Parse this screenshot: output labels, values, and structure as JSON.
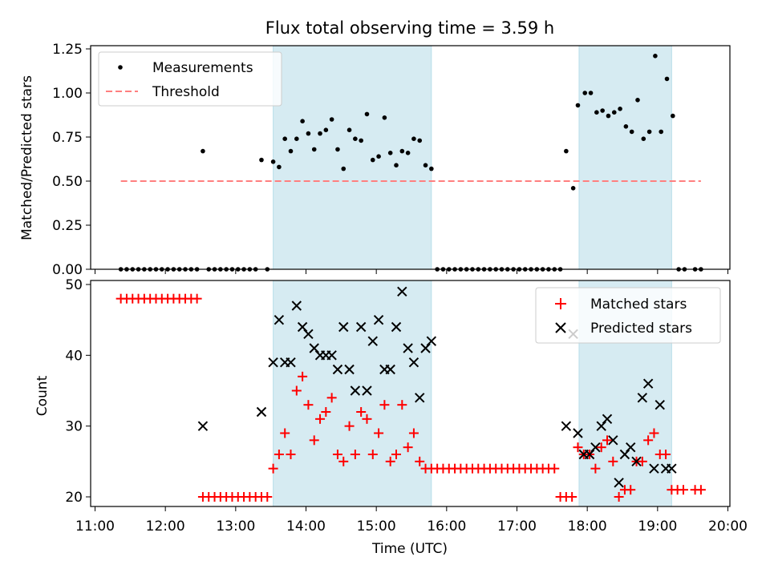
{
  "title": "Flux total observing time = 3.59 h",
  "xlabel": "Time (UTC)",
  "chart_data": [
    {
      "type": "scatter",
      "panel": "top",
      "ylabel": "Matched/Predicted stars",
      "xlim": [
        "11:00",
        "20:00"
      ],
      "ylim": [
        0,
        1.25
      ],
      "yticks": [
        "0.00",
        "0.25",
        "0.50",
        "0.75",
        "1.00",
        "1.25"
      ],
      "legend": {
        "placement": "top-left",
        "entries": [
          "Measurements",
          "Threshold"
        ]
      },
      "shaded_intervals": [
        [
          "13:32",
          "15:47"
        ],
        [
          "17:53",
          "19:12"
        ]
      ],
      "threshold": {
        "name": "Threshold",
        "y": 0.5,
        "x_range": [
          "11:22",
          "19:37"
        ],
        "color": "#ff7f7f"
      },
      "series": [
        {
          "name": "Measurements",
          "color": "#000000",
          "points": [
            [
              "11:22",
              0
            ],
            [
              "11:27",
              0
            ],
            [
              "11:32",
              0
            ],
            [
              "11:37",
              0
            ],
            [
              "11:42",
              0
            ],
            [
              "11:47",
              0
            ],
            [
              "11:52",
              0
            ],
            [
              "11:57",
              0
            ],
            [
              "12:02",
              0
            ],
            [
              "12:07",
              0
            ],
            [
              "12:12",
              0
            ],
            [
              "12:17",
              0
            ],
            [
              "12:22",
              0
            ],
            [
              "12:27",
              0
            ],
            [
              "12:32",
              0.67
            ],
            [
              "12:37",
              0
            ],
            [
              "12:42",
              0
            ],
            [
              "12:47",
              0
            ],
            [
              "12:52",
              0
            ],
            [
              "12:57",
              0
            ],
            [
              "13:02",
              0
            ],
            [
              "13:07",
              0
            ],
            [
              "13:12",
              0
            ],
            [
              "13:17",
              0
            ],
            [
              "13:22",
              0.62
            ],
            [
              "13:27",
              0
            ],
            [
              "13:32",
              0.61
            ],
            [
              "13:37",
              0.58
            ],
            [
              "13:42",
              0.74
            ],
            [
              "13:47",
              0.67
            ],
            [
              "13:52",
              0.74
            ],
            [
              "13:57",
              0.84
            ],
            [
              "14:02",
              0.77
            ],
            [
              "14:07",
              0.68
            ],
            [
              "14:12",
              0.77
            ],
            [
              "14:17",
              0.79
            ],
            [
              "14:22",
              0.85
            ],
            [
              "14:27",
              0.68
            ],
            [
              "14:32",
              0.57
            ],
            [
              "14:37",
              0.79
            ],
            [
              "14:42",
              0.74
            ],
            [
              "14:47",
              0.73
            ],
            [
              "14:52",
              0.88
            ],
            [
              "14:57",
              0.62
            ],
            [
              "15:02",
              0.64
            ],
            [
              "15:07",
              0.86
            ],
            [
              "15:12",
              0.66
            ],
            [
              "15:17",
              0.59
            ],
            [
              "15:22",
              0.67
            ],
            [
              "15:27",
              0.66
            ],
            [
              "15:32",
              0.74
            ],
            [
              "15:37",
              0.73
            ],
            [
              "15:42",
              0.59
            ],
            [
              "15:47",
              0.57
            ],
            [
              "15:52",
              0
            ],
            [
              "15:57",
              0
            ],
            [
              "16:02",
              0
            ],
            [
              "16:07",
              0
            ],
            [
              "16:12",
              0
            ],
            [
              "16:17",
              0
            ],
            [
              "16:22",
              0
            ],
            [
              "16:27",
              0
            ],
            [
              "16:32",
              0
            ],
            [
              "16:37",
              0
            ],
            [
              "16:42",
              0
            ],
            [
              "16:47",
              0
            ],
            [
              "16:52",
              0
            ],
            [
              "16:57",
              0
            ],
            [
              "17:02",
              0
            ],
            [
              "17:07",
              0
            ],
            [
              "17:12",
              0
            ],
            [
              "17:17",
              0
            ],
            [
              "17:22",
              0
            ],
            [
              "17:27",
              0
            ],
            [
              "17:32",
              0
            ],
            [
              "17:37",
              0
            ],
            [
              "17:42",
              0.67
            ],
            [
              "17:48",
              0.46
            ],
            [
              "17:52",
              0.93
            ],
            [
              "17:58",
              1.0
            ],
            [
              "18:03",
              1.0
            ],
            [
              "18:08",
              0.89
            ],
            [
              "18:13",
              0.9
            ],
            [
              "18:18",
              0.87
            ],
            [
              "18:23",
              0.89
            ],
            [
              "18:28",
              0.91
            ],
            [
              "18:33",
              0.81
            ],
            [
              "18:38",
              0.78
            ],
            [
              "18:43",
              0.96
            ],
            [
              "18:48",
              0.74
            ],
            [
              "18:53",
              0.78
            ],
            [
              "18:58",
              1.21
            ],
            [
              "19:03",
              0.78
            ],
            [
              "19:08",
              1.08
            ],
            [
              "19:13",
              0.87
            ],
            [
              "19:18",
              0
            ],
            [
              "19:23",
              0
            ],
            [
              "19:32",
              0
            ],
            [
              "19:37",
              0
            ]
          ]
        }
      ]
    },
    {
      "type": "scatter",
      "panel": "bottom",
      "ylabel": "Count",
      "xlim": [
        "11:00",
        "20:00"
      ],
      "ylim": [
        18.5,
        50
      ],
      "yticks": [
        "20",
        "30",
        "40",
        "50"
      ],
      "xticks": [
        "11:00",
        "12:00",
        "13:00",
        "14:00",
        "15:00",
        "16:00",
        "17:00",
        "18:00",
        "19:00",
        "20:00"
      ],
      "legend": {
        "placement": "top-right",
        "entries": [
          "Matched stars",
          "Predicted stars"
        ]
      },
      "shaded_intervals": [
        [
          "13:32",
          "15:47"
        ],
        [
          "17:53",
          "19:12"
        ]
      ],
      "series": [
        {
          "name": "Matched stars",
          "marker": "plus",
          "color": "#ff0000",
          "points": [
            [
              "11:22",
              48
            ],
            [
              "11:27",
              48
            ],
            [
              "11:32",
              48
            ],
            [
              "11:37",
              48
            ],
            [
              "11:42",
              48
            ],
            [
              "11:47",
              48
            ],
            [
              "11:52",
              48
            ],
            [
              "11:57",
              48
            ],
            [
              "12:02",
              48
            ],
            [
              "12:07",
              48
            ],
            [
              "12:12",
              48
            ],
            [
              "12:17",
              48
            ],
            [
              "12:22",
              48
            ],
            [
              "12:27",
              48
            ],
            [
              "12:32",
              20
            ],
            [
              "12:37",
              20
            ],
            [
              "12:42",
              20
            ],
            [
              "12:47",
              20
            ],
            [
              "12:52",
              20
            ],
            [
              "12:57",
              20
            ],
            [
              "13:02",
              20
            ],
            [
              "13:07",
              20
            ],
            [
              "13:12",
              20
            ],
            [
              "13:17",
              20
            ],
            [
              "13:22",
              20
            ],
            [
              "13:27",
              20
            ],
            [
              "13:32",
              24
            ],
            [
              "13:37",
              26
            ],
            [
              "13:42",
              29
            ],
            [
              "13:47",
              26
            ],
            [
              "13:52",
              35
            ],
            [
              "13:57",
              37
            ],
            [
              "14:02",
              33
            ],
            [
              "14:07",
              28
            ],
            [
              "14:12",
              31
            ],
            [
              "14:17",
              32
            ],
            [
              "14:22",
              34
            ],
            [
              "14:27",
              26
            ],
            [
              "14:32",
              25
            ],
            [
              "14:37",
              30
            ],
            [
              "14:42",
              26
            ],
            [
              "14:47",
              32
            ],
            [
              "14:52",
              31
            ],
            [
              "14:57",
              26
            ],
            [
              "15:02",
              29
            ],
            [
              "15:07",
              33
            ],
            [
              "15:12",
              25
            ],
            [
              "15:17",
              26
            ],
            [
              "15:22",
              33
            ],
            [
              "15:27",
              27
            ],
            [
              "15:32",
              29
            ],
            [
              "15:37",
              25
            ],
            [
              "15:42",
              24
            ],
            [
              "15:47",
              24
            ],
            [
              "15:52",
              24
            ],
            [
              "15:57",
              24
            ],
            [
              "16:02",
              24
            ],
            [
              "16:07",
              24
            ],
            [
              "16:12",
              24
            ],
            [
              "16:17",
              24
            ],
            [
              "16:22",
              24
            ],
            [
              "16:27",
              24
            ],
            [
              "16:32",
              24
            ],
            [
              "16:37",
              24
            ],
            [
              "16:42",
              24
            ],
            [
              "16:47",
              24
            ],
            [
              "16:52",
              24
            ],
            [
              "16:57",
              24
            ],
            [
              "17:02",
              24
            ],
            [
              "17:07",
              24
            ],
            [
              "17:12",
              24
            ],
            [
              "17:17",
              24
            ],
            [
              "17:22",
              24
            ],
            [
              "17:27",
              24
            ],
            [
              "17:32",
              24
            ],
            [
              "17:37",
              20
            ],
            [
              "17:42",
              20
            ],
            [
              "17:47",
              20
            ],
            [
              "17:52",
              27
            ],
            [
              "17:57",
              26
            ],
            [
              "18:02",
              26
            ],
            [
              "18:07",
              24
            ],
            [
              "18:12",
              27
            ],
            [
              "18:17",
              28
            ],
            [
              "18:22",
              25
            ],
            [
              "18:27",
              20
            ],
            [
              "18:32",
              21
            ],
            [
              "18:37",
              21
            ],
            [
              "18:42",
              25
            ],
            [
              "18:47",
              25
            ],
            [
              "18:52",
              28
            ],
            [
              "18:57",
              29
            ],
            [
              "19:02",
              26
            ],
            [
              "19:07",
              26
            ],
            [
              "19:12",
              21
            ],
            [
              "19:17",
              21
            ],
            [
              "19:22",
              21
            ],
            [
              "19:32",
              21
            ],
            [
              "19:37",
              21
            ]
          ]
        },
        {
          "name": "Predicted stars",
          "marker": "x",
          "color": "#000000",
          "points": [
            [
              "12:32",
              30
            ],
            [
              "13:22",
              32
            ],
            [
              "13:32",
              39
            ],
            [
              "13:37",
              45
            ],
            [
              "13:42",
              39
            ],
            [
              "13:47",
              39
            ],
            [
              "13:52",
              47
            ],
            [
              "13:57",
              44
            ],
            [
              "14:02",
              43
            ],
            [
              "14:07",
              41
            ],
            [
              "14:12",
              40
            ],
            [
              "14:17",
              40
            ],
            [
              "14:22",
              40
            ],
            [
              "14:27",
              38
            ],
            [
              "14:32",
              44
            ],
            [
              "14:37",
              38
            ],
            [
              "14:42",
              35
            ],
            [
              "14:47",
              44
            ],
            [
              "14:52",
              35
            ],
            [
              "14:57",
              42
            ],
            [
              "15:02",
              45
            ],
            [
              "15:07",
              38
            ],
            [
              "15:12",
              38
            ],
            [
              "15:17",
              44
            ],
            [
              "15:22",
              49
            ],
            [
              "15:27",
              41
            ],
            [
              "15:32",
              39
            ],
            [
              "15:37",
              34
            ],
            [
              "15:42",
              41
            ],
            [
              "15:47",
              42
            ],
            [
              "17:42",
              30
            ],
            [
              "17:48",
              43
            ],
            [
              "17:52",
              29
            ],
            [
              "17:57",
              26
            ],
            [
              "18:02",
              26
            ],
            [
              "18:07",
              27
            ],
            [
              "18:12",
              30
            ],
            [
              "18:17",
              31
            ],
            [
              "18:22",
              28
            ],
            [
              "18:27",
              22
            ],
            [
              "18:32",
              26
            ],
            [
              "18:37",
              27
            ],
            [
              "18:42",
              25
            ],
            [
              "18:47",
              34
            ],
            [
              "18:52",
              36
            ],
            [
              "18:57",
              24
            ],
            [
              "19:02",
              33
            ],
            [
              "19:07",
              24
            ],
            [
              "19:12",
              24
            ]
          ]
        }
      ]
    }
  ]
}
